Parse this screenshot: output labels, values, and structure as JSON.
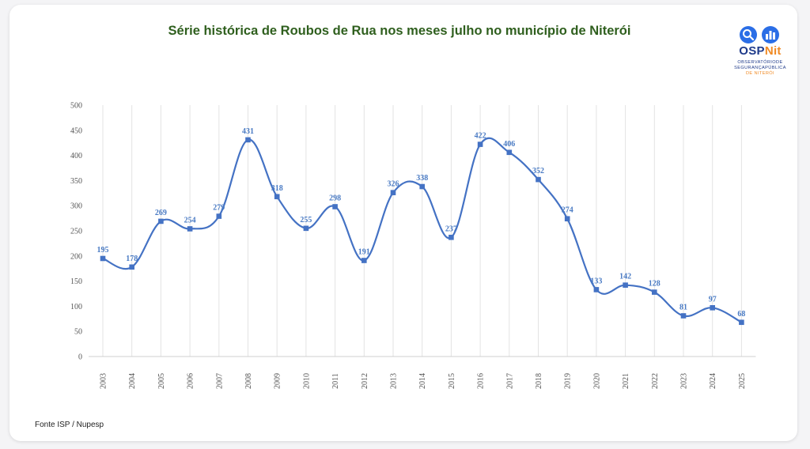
{
  "title": "Série histórica de Roubos de Rua nos meses julho no município de Niterói",
  "source": "Fonte ISP / Nupesp",
  "logo": {
    "word_main": "OSP",
    "word_accent": "Nit",
    "sub_line1": "OBSERVATÓRIODE",
    "sub_line2": "SEGURANÇAPÚBLICA",
    "sub_line3": "DE NITERÓI",
    "icons": [
      "search-icon",
      "bar-chart-icon"
    ],
    "colors": {
      "primary": "#1e3a8a",
      "accent": "#f08a24",
      "icon_bg": "#2b6ee6"
    }
  },
  "colors": {
    "line": "#4472c4",
    "marker": "#4472c4",
    "label": "#4a7bc4",
    "title": "#2f5f1e"
  },
  "chart_data": {
    "type": "line",
    "title": "Série histórica de Roubos de Rua nos meses julho no município de Niterói",
    "xlabel": "",
    "ylabel": "",
    "categories": [
      "2003",
      "2004",
      "2005",
      "2006",
      "2007",
      "2008",
      "2009",
      "2010",
      "2011",
      "2012",
      "2013",
      "2014",
      "2015",
      "2016",
      "2017",
      "2018",
      "2019",
      "2020",
      "2021",
      "2022",
      "2023",
      "2024",
      "2025"
    ],
    "series": [
      {
        "values": [
          195,
          178,
          269,
          254,
          279,
          431,
          318,
          255,
          298,
          191,
          326,
          338,
          237,
          422,
          406,
          352,
          274,
          133,
          142,
          128,
          81,
          97,
          68
        ]
      }
    ],
    "data_labels": [
      "195",
      "178",
      "269",
      "254",
      "279",
      "431",
      "318",
      "255",
      "298",
      "191",
      "326",
      "338",
      "237",
      "422",
      "406",
      "352",
      "274",
      "133",
      "142",
      "128",
      "81",
      "97",
      "68"
    ],
    "yticks": [
      "0",
      "50",
      "100",
      "150",
      "200",
      "250",
      "300",
      "350",
      "400",
      "450",
      "500"
    ],
    "ylim": [
      0,
      500
    ],
    "smooth": true,
    "markers": "square",
    "grid": "vertical",
    "legend": "none"
  }
}
